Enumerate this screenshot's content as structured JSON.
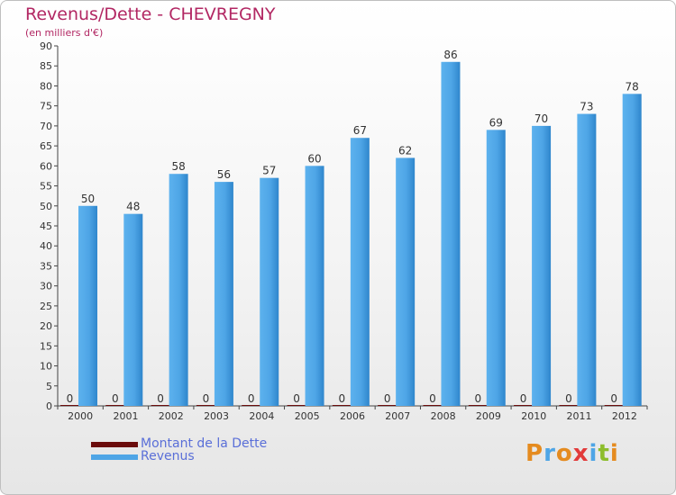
{
  "header": {
    "title": "Revenus/Dette - CHEVREGNY",
    "subtitle": "(en milliers d'€)"
  },
  "legend": {
    "items": [
      {
        "label": "Montant de la Dette",
        "color": "#6b0c0c"
      },
      {
        "label": "Revenus",
        "color": "#4ea5e6"
      }
    ]
  },
  "logo": {
    "text": "Proxiti",
    "letters": [
      "P",
      "r",
      "o",
      "x",
      "i",
      "t",
      "i"
    ],
    "colors": [
      "#e58b1f",
      "#4ea5e6",
      "#e58b1f",
      "#e23a3a",
      "#4ea5e6",
      "#8dbd2c",
      "#e58b1f"
    ]
  },
  "chart_data": {
    "type": "bar",
    "title": "Revenus/Dette - CHEVREGNY",
    "subtitle": "(en milliers d'€)",
    "categories": [
      "2000",
      "2001",
      "2002",
      "2003",
      "2004",
      "2005",
      "2006",
      "2007",
      "2008",
      "2009",
      "2010",
      "2011",
      "2012"
    ],
    "series": [
      {
        "name": "Montant de la Dette",
        "color": "#6b0c0c",
        "values": [
          0,
          0,
          0,
          0,
          0,
          0,
          0,
          0,
          0,
          0,
          0,
          0,
          0
        ]
      },
      {
        "name": "Revenus",
        "color": "#4ea5e6",
        "values": [
          50,
          48,
          58,
          56,
          57,
          60,
          67,
          62,
          86,
          69,
          70,
          73,
          78
        ]
      }
    ],
    "ylim": [
      0,
      90
    ],
    "yticks": [
      0,
      5,
      10,
      15,
      20,
      25,
      30,
      35,
      40,
      45,
      50,
      55,
      60,
      65,
      70,
      75,
      80,
      85,
      90
    ],
    "grid": false,
    "legend_position": "bottom-left"
  }
}
